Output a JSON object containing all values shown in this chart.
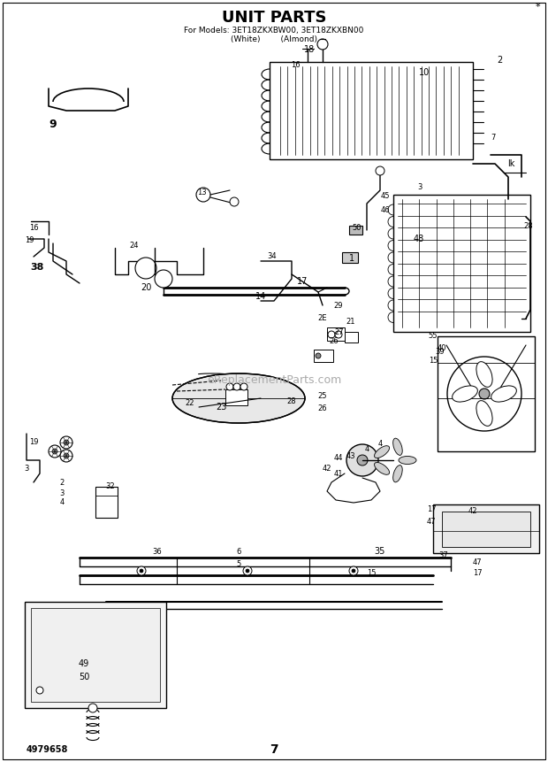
{
  "title": "UNIT PARTS",
  "subtitle": "For Models: 3ET18ZKXBW00, 3ET18ZKXBN00",
  "subtitle2": "(White)        (Almond)",
  "page_number": "7",
  "catalog_number": "4979658",
  "background_color": "#ffffff",
  "figsize": [
    6.2,
    8.61
  ],
  "dpi": 100,
  "watermark": "eReplacementParts.com"
}
